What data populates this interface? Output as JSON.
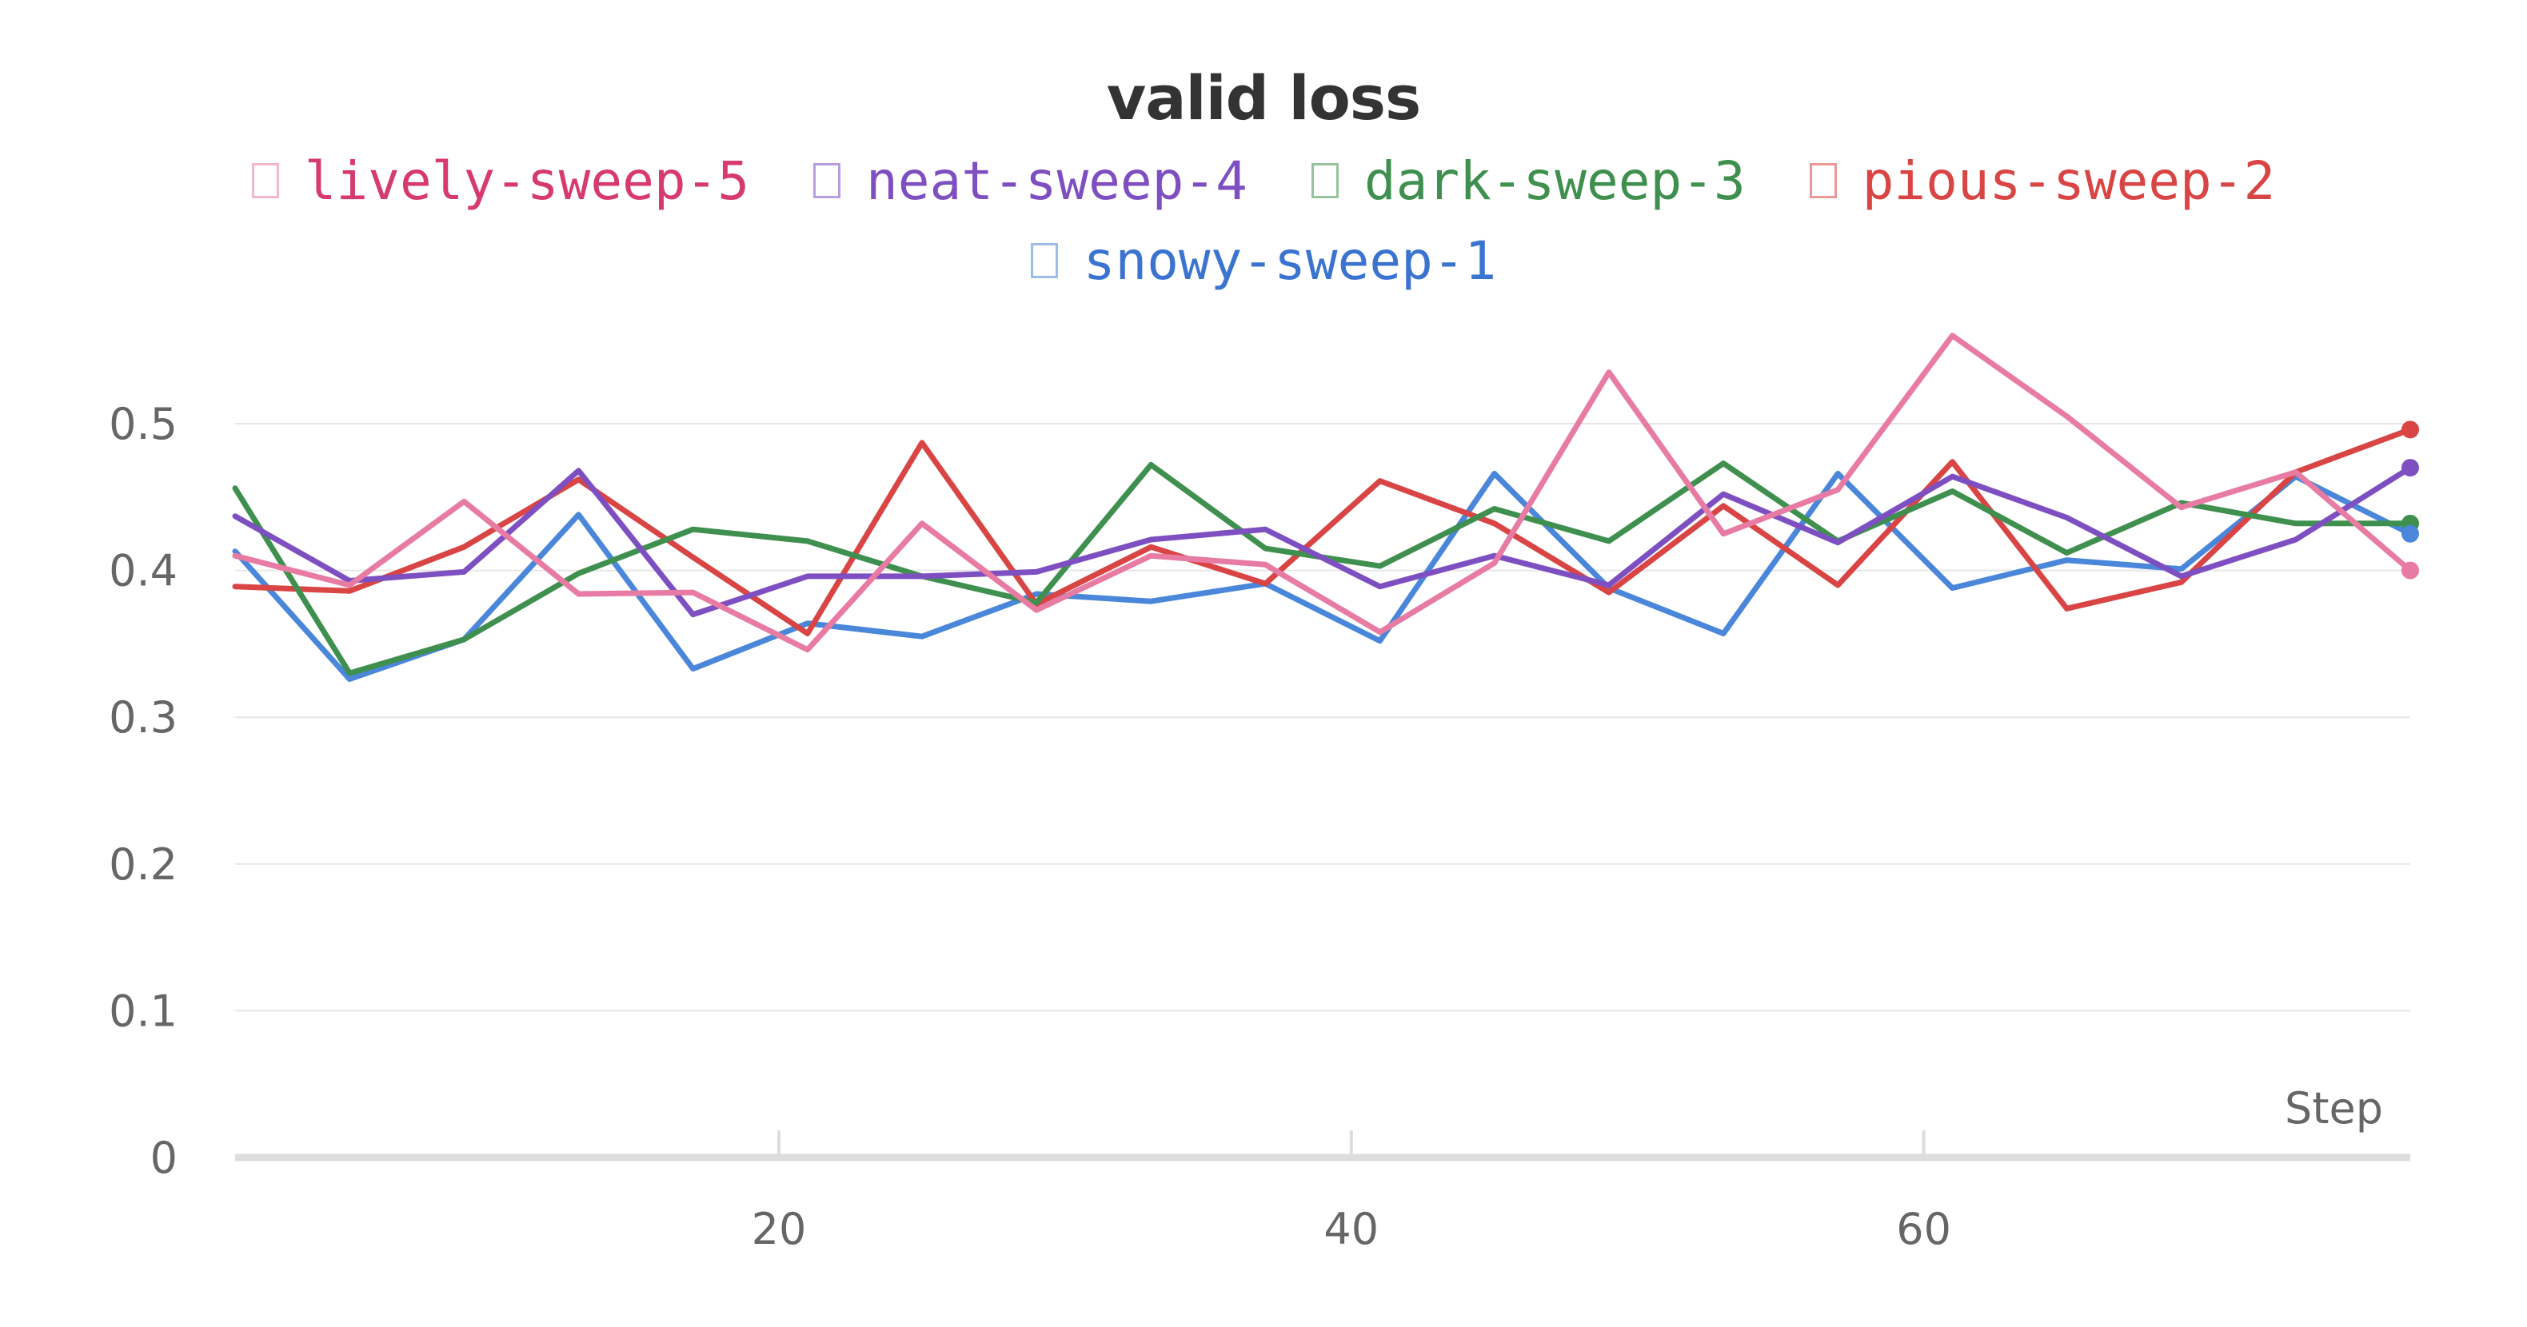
{
  "chart_data": {
    "type": "line",
    "title": "valid loss",
    "xlabel": "Step",
    "ylabel": "",
    "xlim": [
      1,
      77
    ],
    "ylim": [
      0,
      0.55
    ],
    "yticks": [
      0,
      0.1,
      0.2,
      0.3,
      0.4,
      0.5
    ],
    "xticks": [
      20,
      40,
      60
    ],
    "grid": "horizontal",
    "legend_position": "top",
    "x": [
      1,
      5,
      9,
      13,
      17,
      21,
      25,
      29,
      33,
      37,
      41,
      45,
      49,
      53,
      57,
      61,
      65,
      69,
      73,
      77
    ],
    "series": [
      {
        "name": "lively-sweep-5",
        "color": "#e87ba4",
        "text_color": "#d63a6f",
        "values": [
          0.41,
          0.39,
          0.447,
          0.384,
          0.385,
          0.346,
          0.432,
          0.373,
          0.41,
          0.404,
          0.358,
          0.405,
          0.535,
          0.425,
          0.455,
          0.56,
          0.505,
          0.443,
          0.467,
          0.4
        ]
      },
      {
        "name": "neat-sweep-4",
        "color": "#7e4fc1",
        "text_color": "#7e4fc1",
        "values": [
          0.437,
          0.393,
          0.399,
          0.468,
          0.37,
          0.396,
          0.396,
          0.399,
          0.421,
          0.428,
          0.389,
          0.41,
          0.39,
          0.452,
          0.419,
          0.464,
          0.436,
          0.396,
          0.421,
          0.47
        ]
      },
      {
        "name": "dark-sweep-3",
        "color": "#3f8f4f",
        "text_color": "#3f8f4f",
        "values": [
          0.456,
          0.33,
          0.353,
          0.398,
          0.428,
          0.42,
          0.396,
          0.378,
          0.472,
          0.415,
          0.403,
          0.442,
          0.42,
          0.473,
          0.42,
          0.454,
          0.412,
          0.446,
          0.432,
          0.432
        ]
      },
      {
        "name": "pious-sweep-2",
        "color": "#d94444",
        "text_color": "#d94444",
        "values": [
          0.389,
          0.386,
          0.416,
          0.462,
          0.409,
          0.357,
          0.487,
          0.377,
          0.416,
          0.391,
          0.461,
          0.432,
          0.385,
          0.444,
          0.39,
          0.474,
          0.374,
          0.392,
          0.467,
          0.496
        ]
      },
      {
        "name": "snowy-sweep-1",
        "color": "#4a86d9",
        "text_color": "#3a74d0",
        "values": [
          0.413,
          0.326,
          0.353,
          0.438,
          0.333,
          0.364,
          0.355,
          0.384,
          0.379,
          0.391,
          0.352,
          0.466,
          0.388,
          0.357,
          0.466,
          0.388,
          0.407,
          0.401,
          0.464,
          0.425
        ]
      }
    ]
  }
}
